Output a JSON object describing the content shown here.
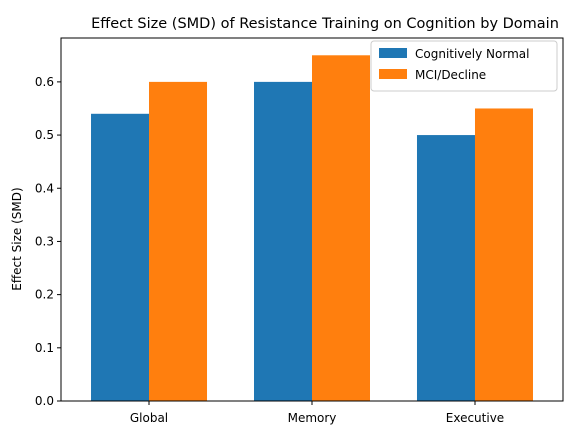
{
  "chart_data": {
    "type": "bar",
    "title": "Effect Size (SMD) of Resistance Training on Cognition by Domain",
    "xlabel": "",
    "ylabel": "Effect Size (SMD)",
    "categories": [
      "Global",
      "Memory",
      "Executive"
    ],
    "series": [
      {
        "name": "Cognitively Normal",
        "values": [
          0.54,
          0.6,
          0.5
        ],
        "color": "#1f77b4"
      },
      {
        "name": "MCI/Decline",
        "values": [
          0.6,
          0.65,
          0.55
        ],
        "color": "#ff7f0e"
      }
    ],
    "ylim": [
      0,
      0.6825
    ],
    "yticks": [
      "0.0",
      "0.1",
      "0.2",
      "0.3",
      "0.4",
      "0.5",
      "0.6"
    ],
    "grid": false,
    "legend_position": "top-right"
  }
}
